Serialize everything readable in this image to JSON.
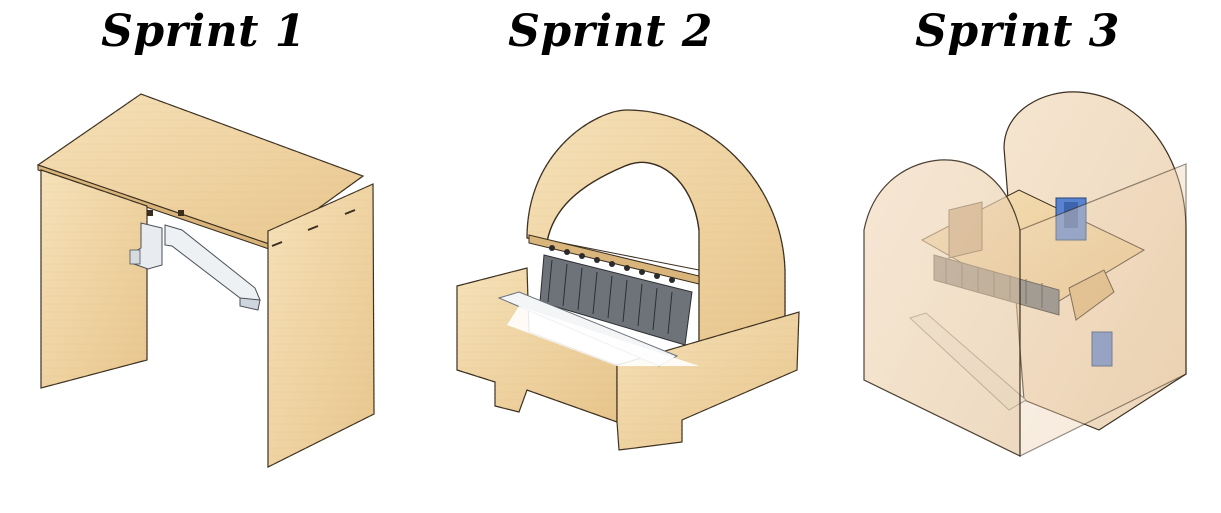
{
  "sprints": [
    {
      "title": "Sprint 1",
      "illustration": "wooden-bench-with-arm-brackets"
    },
    {
      "title": "Sprint 2",
      "illustration": "arched-wooden-enclosure-with-keyboard"
    },
    {
      "title": "Sprint 3",
      "illustration": "transparent-arched-enclosure-with-mechanism"
    }
  ],
  "colors": {
    "wood_light": "#f3dcb0",
    "wood_mid": "#e9c98f",
    "wood_dark": "#c9a36a",
    "edge": "#3a2e1f",
    "metal": "#dfe4ea",
    "keys_dark": "#5b5f66",
    "blue_part": "#4f7fd1"
  }
}
